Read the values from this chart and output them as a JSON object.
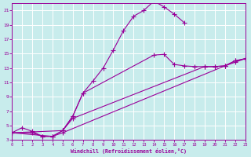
{
  "xlabel": "Windchill (Refroidissement éolien,°C)",
  "xlim": [
    0,
    23
  ],
  "ylim": [
    3,
    22
  ],
  "xticks": [
    0,
    1,
    2,
    3,
    4,
    5,
    6,
    7,
    8,
    9,
    10,
    11,
    12,
    13,
    14,
    15,
    16,
    17,
    18,
    19,
    20,
    21,
    22,
    23
  ],
  "yticks": [
    3,
    5,
    7,
    9,
    11,
    13,
    15,
    17,
    19,
    21
  ],
  "background_color": "#c8ecec",
  "line_color": "#990099",
  "grid_color": "#ffffff",
  "arch_x": [
    0,
    1,
    2,
    3,
    4,
    5,
    6,
    7,
    8,
    9,
    10,
    11,
    12,
    13,
    14,
    15,
    16,
    17
  ],
  "arch_y": [
    4.0,
    4.7,
    4.2,
    3.5,
    3.5,
    4.3,
    6.3,
    9.5,
    11.2,
    13.0,
    15.5,
    18.2,
    20.2,
    21.0,
    22.3,
    21.5,
    20.5,
    19.3
  ],
  "fan1_x": [
    0,
    5,
    6,
    7,
    14,
    15,
    16,
    17,
    18,
    19,
    20,
    21,
    22,
    23
  ],
  "fan1_y": [
    4.0,
    4.3,
    6.3,
    9.5,
    14.8,
    14.9,
    13.5,
    13.3,
    13.2,
    13.2,
    13.2,
    13.3,
    14.0,
    14.3
  ],
  "fan2_x": [
    0,
    4,
    5,
    6,
    19,
    20,
    21,
    22,
    23
  ],
  "fan2_y": [
    4.0,
    3.5,
    4.3,
    6.0,
    13.2,
    13.2,
    13.3,
    14.0,
    14.3
  ],
  "fan3_x": [
    0,
    2,
    3,
    4,
    5,
    21,
    22,
    23
  ],
  "fan3_y": [
    4.0,
    4.0,
    3.5,
    3.5,
    4.0,
    13.3,
    13.8,
    14.3
  ]
}
